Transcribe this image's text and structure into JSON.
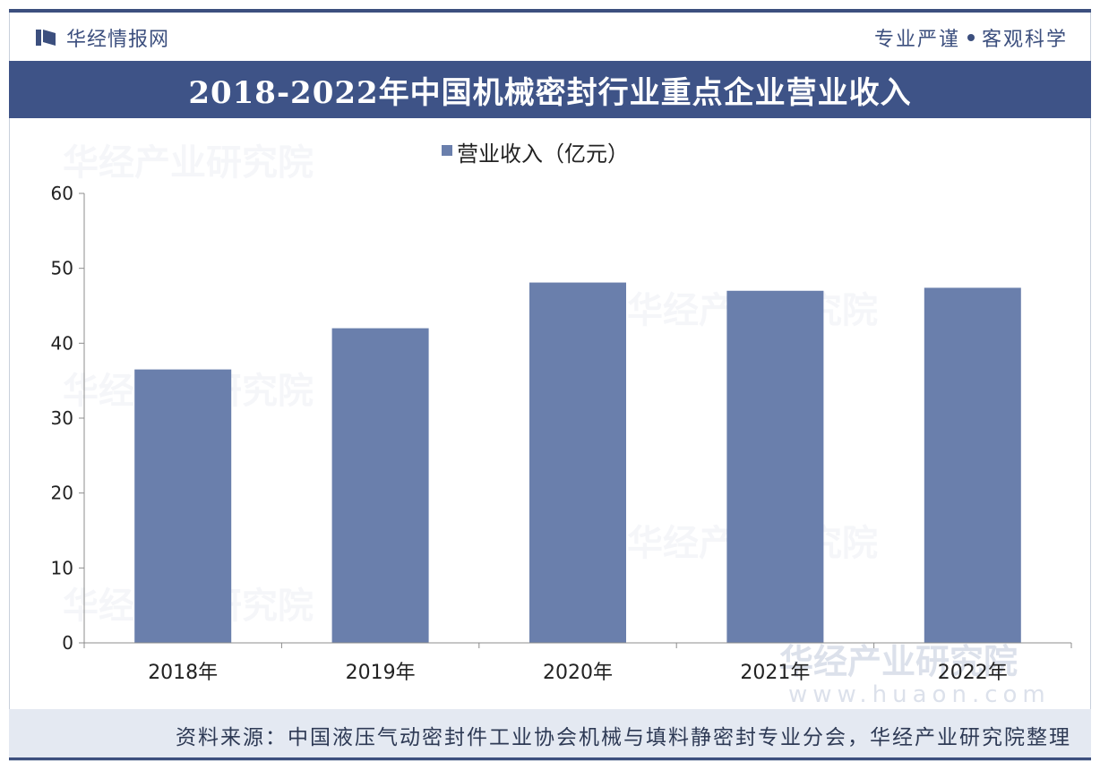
{
  "header": {
    "brand": "华经情报网",
    "tagline_left": "专业严谨",
    "tagline_right": "客观科学"
  },
  "footer": {
    "source": "资料来源：中国液压气动密封件工业协会机械与填料静密封专业分会，华经产业研究院整理"
  },
  "watermark": {
    "text": "华经产业研究院",
    "url": "www.huaon.com"
  },
  "colors": {
    "bar": "#6a7fac",
    "title_bg": "#3e5387",
    "brand": "#3c4f7e"
  },
  "chart_data": {
    "type": "bar",
    "title": "2018-2022年中国机械密封行业重点企业营业收入",
    "categories": [
      "2018年",
      "2019年",
      "2020年",
      "2021年",
      "2022年"
    ],
    "series": [
      {
        "name": "营业收入（亿元）",
        "values": [
          36.5,
          42.0,
          48.1,
          47.0,
          47.4
        ]
      }
    ],
    "xlabel": "",
    "ylabel": "",
    "ylim": [
      0,
      60
    ],
    "yticks": [
      0,
      10,
      20,
      30,
      40,
      50,
      60
    ],
    "grid": false,
    "legend": "top-center"
  }
}
